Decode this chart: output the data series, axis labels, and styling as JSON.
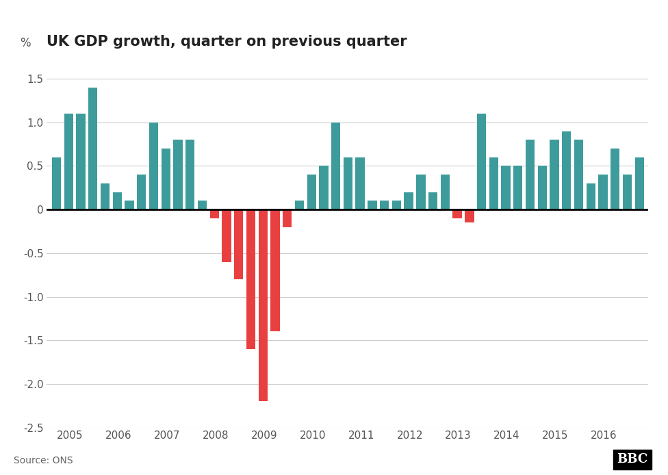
{
  "title": "UK GDP growth, quarter on previous quarter",
  "ylabel": "%",
  "source": "Source: ONS",
  "ylim": [
    -2.5,
    1.75
  ],
  "yticks": [
    -2.5,
    -2.0,
    -1.5,
    -1.0,
    -0.5,
    0.0,
    0.5,
    1.0,
    1.5
  ],
  "positive_color": "#3d9c9b",
  "negative_color": "#e84040",
  "background_color": "#ffffff",
  "grid_color": "#cccccc",
  "values": [
    0.6,
    1.1,
    1.1,
    1.4,
    0.3,
    0.2,
    0.1,
    0.4,
    1.0,
    0.7,
    0.8,
    0.8,
    0.1,
    -0.1,
    -0.6,
    -0.8,
    -1.6,
    -2.2,
    -1.4,
    -0.2,
    0.1,
    0.4,
    0.5,
    1.0,
    0.6,
    0.6,
    0.1,
    0.1,
    0.1,
    0.2,
    0.4,
    0.2,
    0.4,
    -0.1,
    -0.15,
    1.1,
    0.6,
    0.5,
    0.5,
    0.8,
    0.5,
    0.8,
    0.9,
    0.8,
    0.3,
    0.4,
    0.7,
    0.4,
    0.6
  ],
  "x_year_labels": [
    "2005",
    "2006",
    "2007",
    "2008",
    "2009",
    "2010",
    "2011",
    "2012",
    "2013",
    "2014",
    "2015",
    "2016"
  ],
  "bars_per_year": [
    4,
    4,
    4,
    4,
    4,
    4,
    4,
    4,
    4,
    4,
    4,
    1
  ]
}
